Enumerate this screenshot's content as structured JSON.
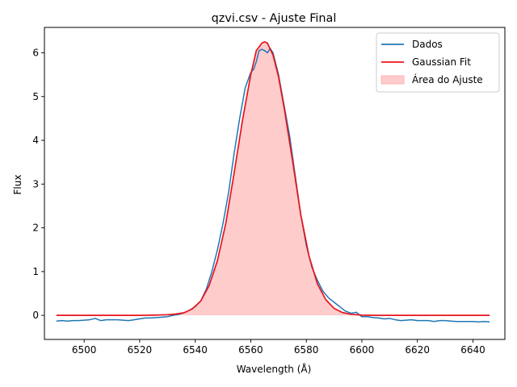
{
  "chart_data": {
    "type": "line",
    "title": "qzvi.csv - Ajuste Final",
    "xlabel": "Wavelength (Å)",
    "ylabel": "Flux",
    "xlim": [
      6485.7,
      6651.5
    ],
    "ylim": [
      -0.55,
      6.58
    ],
    "xticks": [
      6500,
      6520,
      6540,
      6560,
      6580,
      6600,
      6620,
      6640
    ],
    "yticks": [
      0,
      1,
      2,
      3,
      4,
      5,
      6
    ],
    "grid": false,
    "legend_position": "top-right",
    "legend": [
      {
        "label": "Dados",
        "kind": "line",
        "color": "#1f77b4"
      },
      {
        "label": "Gaussian Fit",
        "kind": "line",
        "color": "#e8141b"
      },
      {
        "label": "Área do Ajuste",
        "kind": "patch",
        "color": "#ffcccc"
      }
    ],
    "series": [
      {
        "name": "Dados",
        "color": "#1f77b4",
        "x": [
          6490,
          6492,
          6494,
          6496,
          6498,
          6500,
          6502,
          6504,
          6506,
          6508,
          6510,
          6512,
          6514,
          6516,
          6518,
          6520,
          6522,
          6524,
          6526,
          6528,
          6530,
          6532,
          6534,
          6536,
          6538,
          6540,
          6542,
          6544,
          6546,
          6548,
          6550,
          6552,
          6554,
          6556,
          6558,
          6560,
          6561,
          6562,
          6563,
          6564,
          6565,
          6566,
          6567,
          6568,
          6570,
          6572,
          6574,
          6576,
          6578,
          6580,
          6582,
          6584,
          6586,
          6588,
          6590,
          6592,
          6594,
          6596,
          6598,
          6600,
          6602,
          6604,
          6606,
          6608,
          6610,
          6612,
          6614,
          6616,
          6618,
          6620,
          6622,
          6624,
          6626,
          6628,
          6630,
          6632,
          6634,
          6636,
          6638,
          6640,
          6642,
          6644,
          6646
        ],
        "y": [
          -0.13,
          -0.12,
          -0.13,
          -0.12,
          -0.12,
          -0.11,
          -0.1,
          -0.07,
          -0.12,
          -0.1,
          -0.1,
          -0.1,
          -0.11,
          -0.12,
          -0.1,
          -0.08,
          -0.06,
          -0.06,
          -0.05,
          -0.04,
          -0.03,
          0.0,
          0.02,
          0.06,
          0.12,
          0.2,
          0.33,
          0.6,
          1.0,
          1.5,
          2.1,
          2.8,
          3.7,
          4.5,
          5.2,
          5.55,
          5.62,
          5.8,
          6.05,
          6.08,
          6.05,
          6.0,
          6.1,
          6.0,
          5.5,
          4.8,
          4.1,
          3.2,
          2.3,
          1.6,
          1.1,
          0.8,
          0.55,
          0.4,
          0.3,
          0.2,
          0.1,
          0.05,
          0.07,
          -0.03,
          -0.03,
          -0.05,
          -0.06,
          -0.08,
          -0.07,
          -0.1,
          -0.12,
          -0.11,
          -0.1,
          -0.12,
          -0.12,
          -0.12,
          -0.14,
          -0.12,
          -0.12,
          -0.13,
          -0.14,
          -0.14,
          -0.14,
          -0.14,
          -0.15,
          -0.14,
          -0.15
        ]
      },
      {
        "name": "Gaussian Fit",
        "color": "#e8141b",
        "fill_color": "#ffcccc",
        "x": [
          6490,
          6500,
          6510,
          6520,
          6525,
          6530,
          6533,
          6536,
          6539,
          6542,
          6545,
          6548,
          6551,
          6554,
          6557,
          6560,
          6562,
          6564,
          6565,
          6566,
          6568,
          6570,
          6572,
          6575,
          6578,
          6581,
          6584,
          6587,
          6590,
          6593,
          6596,
          6600,
          6605,
          6610,
          6620,
          6630,
          6640,
          6646
        ],
        "y": [
          0.0,
          0.0,
          0.0,
          0.0,
          0.005,
          0.015,
          0.03,
          0.06,
          0.15,
          0.33,
          0.68,
          1.25,
          2.1,
          3.25,
          4.45,
          5.5,
          6.05,
          6.22,
          6.25,
          6.22,
          5.95,
          5.45,
          4.75,
          3.55,
          2.3,
          1.35,
          0.72,
          0.36,
          0.16,
          0.065,
          0.025,
          0.005,
          0.0,
          0.0,
          0.0,
          0.0,
          0.0,
          0.0
        ]
      }
    ]
  }
}
